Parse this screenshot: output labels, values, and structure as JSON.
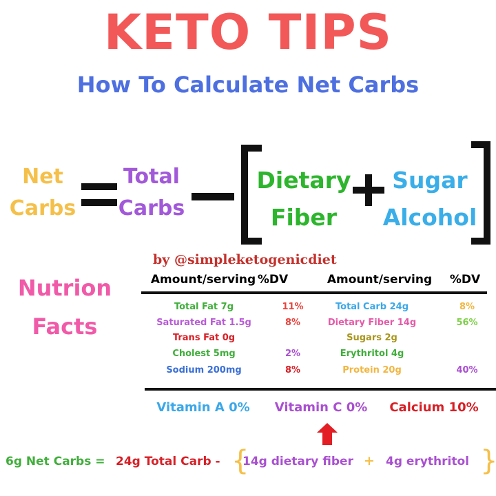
{
  "header": {
    "title": "KETO TIPS",
    "subtitle": "How To Calculate Net Carbs"
  },
  "formula": {
    "net_carbs": [
      "Net",
      "Carbs"
    ],
    "total_carbs": [
      "Total",
      "Carbs"
    ],
    "dietary_fiber": [
      "Dietary",
      "Fiber"
    ],
    "sugar_alcohol": [
      "Sugar",
      "Alcohol"
    ]
  },
  "credit": "by @simpleketogenicdiet",
  "nutrition": {
    "label": [
      "Nutrion",
      "Facts"
    ],
    "headers": [
      "Amount/serving",
      "%DV",
      "Amount/serving",
      "%DV"
    ],
    "left_rows": [
      {
        "name": "Total Fat 7g",
        "color": "#3fae3a",
        "dv": "11%",
        "dv_color": "#e8423c"
      },
      {
        "name": "Saturated Fat 1.5g",
        "color": "#b85ad6",
        "dv": "8%",
        "dv_color": "#e8423c"
      },
      {
        "name": "Trans Fat 0g",
        "color": "#d81f26"
      },
      {
        "name": "Cholest 5mg",
        "color": "#3fae3a",
        "dv": "2%",
        "dv_color": "#a950d0"
      },
      {
        "name": "Sodium  200mg",
        "color": "#3a6fd8",
        "dv": "8%",
        "dv_color": "#d81f26"
      }
    ],
    "right_rows": [
      {
        "name": "Total Carb 24g",
        "color": "#3aa7e8",
        "dv": "8%",
        "dv_color": "#f2b640"
      },
      {
        "name": "Dietary Fiber 14g",
        "color": "#e45aa8",
        "dv": "56%",
        "dv_color": "#7fcf4a"
      },
      {
        "name": "Sugars 2g",
        "color": "#a8951c"
      },
      {
        "name": "Erythritol 4g",
        "color": "#3fae3a"
      },
      {
        "name": "Protein 20g",
        "color": "#f2b640",
        "dv": "40%",
        "dv_color": "#a950d0"
      }
    ],
    "vitamins": [
      {
        "text": "Vitamin A 0%",
        "color": "#3aa7e8"
      },
      {
        "text": "Vitamin C 0%",
        "color": "#a950d0"
      },
      {
        "text": "Calcium 10%",
        "color": "#d81f26"
      }
    ]
  },
  "example": {
    "net": "6g Net Carbs =",
    "total": "24g Total Carb -",
    "fiber": "14g dietary fiber",
    "plus": "+",
    "erythritol": "4g erythritol"
  }
}
